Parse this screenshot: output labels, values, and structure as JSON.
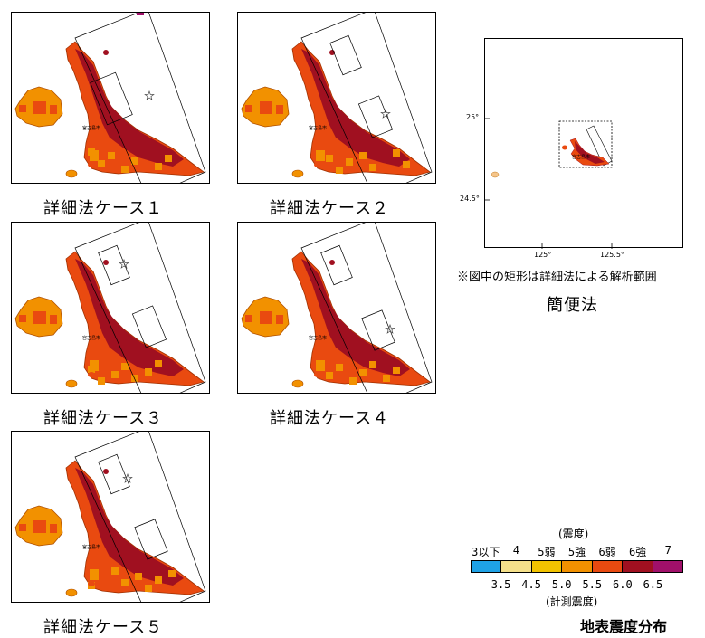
{
  "panels": [
    {
      "caption": "詳細法ケース１"
    },
    {
      "caption": "詳細法ケース２"
    },
    {
      "caption": "詳細法ケース３"
    },
    {
      "caption": "詳細法ケース４"
    },
    {
      "caption": "詳細法ケース５"
    }
  ],
  "map_label": "宮古島市",
  "overview": {
    "lat_labels": [
      "25°",
      "24.5°"
    ],
    "lon_labels": [
      "125°",
      "125.5°"
    ],
    "note": "※図中の矩形は詳細法による解析範囲",
    "caption": "簡便法"
  },
  "legend": {
    "top_title": "(震度)",
    "classes": [
      "3以下",
      "4",
      "5弱",
      "5強",
      "6弱",
      "6強",
      "7"
    ],
    "colors": [
      "#1fa2e6",
      "#f5e08a",
      "#f2c300",
      "#f29100",
      "#e94a10",
      "#a01020",
      "#a0106a"
    ],
    "boundaries": [
      "3.5",
      "4.5",
      "5.0",
      "5.5",
      "6.0",
      "6.5"
    ],
    "bottom_title": "(計測震度)",
    "title": "地表震度分布"
  }
}
